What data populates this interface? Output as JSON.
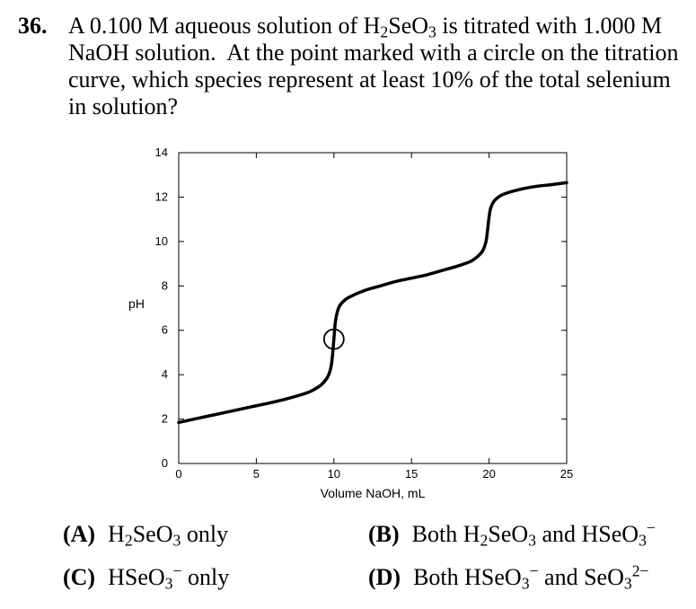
{
  "question": {
    "number": "36.",
    "text_html": "A 0.100 M aqueous solution of H<sub>2</sub>SeO<sub>3</sub> is titrated with 1.000 M NaOH solution.&nbsp; At the point marked with a circle on the titration curve, which species represent at least 10% of the total selenium in solution?"
  },
  "options": [
    {
      "letter": "(A)",
      "html": "H<sub>2</sub>SeO<sub>3</sub> only"
    },
    {
      "letter": "(B)",
      "html": "Both H<sub>2</sub>SeO<sub>3</sub> and HSeO<sub>3</sub><sup>&#8722;</sup>"
    },
    {
      "letter": "(C)",
      "html": "HSeO<sub>3</sub><sup>&#8722;</sup> only"
    },
    {
      "letter": "(D)",
      "html": "Both HSeO<sub>3</sub><sup>&#8722;</sup> and SeO<sub>3</sub><sup>2&#8722;</sup>"
    }
  ],
  "chart_data": {
    "type": "line",
    "xlabel": "Volume NaOH, mL",
    "ylabel": "pH",
    "xlim": [
      0,
      25
    ],
    "ylim": [
      0,
      14
    ],
    "xticks": [
      0,
      5,
      10,
      15,
      20,
      25
    ],
    "yticks": [
      0,
      2,
      4,
      6,
      8,
      10,
      12,
      14
    ],
    "grid": false,
    "series": [
      {
        "x": [
          0,
          1,
          2,
          3,
          4,
          5,
          6,
          7,
          8,
          8.5,
          9,
          9.3,
          9.6,
          9.8,
          9.9,
          10,
          10.1,
          10.3,
          10.6,
          11,
          12,
          13,
          14,
          15,
          16,
          17,
          18,
          18.8,
          19.3,
          19.6,
          19.8,
          19.9,
          20,
          20.1,
          20.3,
          20.6,
          21,
          22,
          23,
          24,
          25
        ],
        "y": [
          1.85,
          2.0,
          2.15,
          2.3,
          2.45,
          2.6,
          2.75,
          2.92,
          3.12,
          3.25,
          3.45,
          3.62,
          3.9,
          4.3,
          4.8,
          5.6,
          6.4,
          7.0,
          7.3,
          7.5,
          7.8,
          8.0,
          8.2,
          8.35,
          8.5,
          8.7,
          8.9,
          9.1,
          9.35,
          9.6,
          10.0,
          10.5,
          11.1,
          11.5,
          11.8,
          12.0,
          12.15,
          12.35,
          12.48,
          12.56,
          12.65
        ]
      }
    ],
    "marker": {
      "x": 10,
      "y": 5.6,
      "shape": "circle"
    }
  }
}
